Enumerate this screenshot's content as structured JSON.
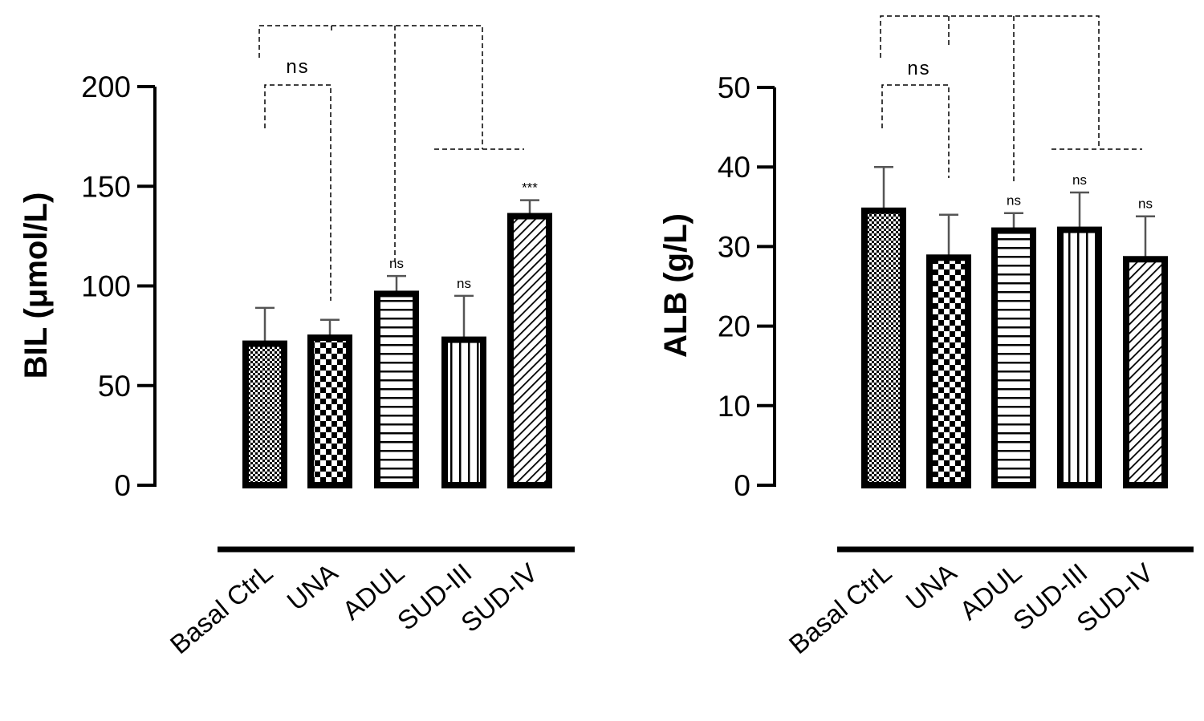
{
  "chart_data": [
    {
      "type": "bar",
      "title": "",
      "ylabel": "BIL (μmol/L)",
      "xlabel": "",
      "ylim": [
        0,
        200
      ],
      "yticks": [
        0,
        50,
        100,
        150,
        200
      ],
      "categories": [
        "Basal CtrL",
        "UNA",
        "ADUL",
        "SUD-III",
        "SUD-IV"
      ],
      "values": [
        71,
        74,
        96,
        73,
        135
      ],
      "error_upper": [
        89,
        83,
        105,
        95,
        143
      ],
      "significance": [
        "",
        "",
        "ns",
        "ns",
        "***"
      ],
      "comparison_label": "ns",
      "patterns": [
        "fine-check",
        "checker",
        "horizontal",
        "vertical",
        "diagonal"
      ]
    },
    {
      "type": "bar",
      "title": "",
      "ylabel": "ALB (g/L)",
      "xlabel": "",
      "ylim": [
        0,
        50
      ],
      "yticks": [
        0,
        10,
        20,
        30,
        40,
        50
      ],
      "categories": [
        "Basal CtrL",
        "UNA",
        "ADUL",
        "SUD-III",
        "SUD-IV"
      ],
      "values": [
        34.5,
        28.6,
        32,
        32.1,
        28.4
      ],
      "error_upper": [
        40,
        34,
        34.2,
        36.8,
        33.8
      ],
      "significance": [
        "",
        "",
        "ns",
        "ns",
        "ns"
      ],
      "comparison_label": "ns",
      "patterns": [
        "fine-check",
        "checker",
        "horizontal",
        "vertical",
        "diagonal"
      ]
    }
  ]
}
